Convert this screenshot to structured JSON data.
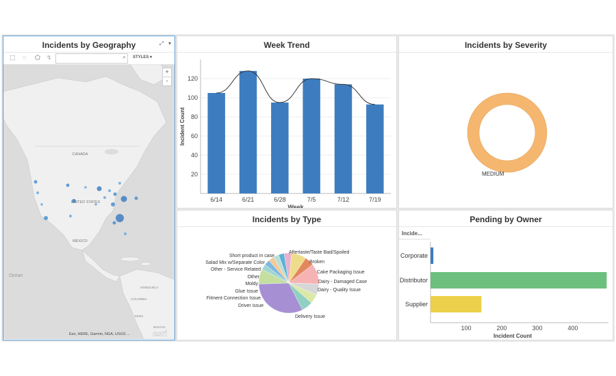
{
  "map": {
    "title": "Incidents by Geography",
    "styles_label": "STYLES",
    "search_placeholder": "",
    "labels": {
      "canada": "CANADA",
      "us": "UNITED STATES",
      "mexico": "MÉXICO",
      "ocean": "Ocean",
      "venezuela": "VENEZUELA",
      "colombia": "COLOMBIA",
      "peru": "PERU",
      "bolivia": "BOLIVIA"
    },
    "attribution": "Esri, HERE, Garmin, NGA, USGS ...",
    "logo": "esri",
    "zoom_in": "+",
    "zoom_out": "-"
  },
  "week_trend": {
    "title": "Week Trend",
    "chart_data": {
      "type": "bar",
      "categories": [
        "6/14",
        "6/21",
        "6/28",
        "7/5",
        "7/12",
        "7/19"
      ],
      "values": [
        105,
        128,
        95,
        120,
        114,
        93
      ],
      "xlabel": "Week",
      "ylabel": "Incident Count",
      "yticks": [
        20,
        40,
        60,
        80,
        100,
        120
      ],
      "ylim": [
        0,
        140
      ],
      "trend_line": true,
      "bar_color": "#3d7dbf"
    }
  },
  "severity": {
    "title": "Incidents by Severity",
    "chart_data": {
      "type": "pie",
      "donut": true,
      "slices": [
        {
          "label": "MEDIUM",
          "value": 100,
          "color": "#f5b66f"
        }
      ]
    }
  },
  "by_type": {
    "title": "Incidents by Type",
    "chart_data": {
      "type": "pie",
      "slices": [
        {
          "label": "Delivery Issue",
          "value": 32,
          "color": "#a68fd3"
        },
        {
          "label": "Driver issue",
          "value": 8,
          "color": "#c4dfa0"
        },
        {
          "label": "Fitment Connection Issue",
          "value": 3,
          "color": "#9fd6d1"
        },
        {
          "label": "Glue Issue",
          "value": 3,
          "color": "#7fb8e0"
        },
        {
          "label": "Moldy",
          "value": 3,
          "color": "#f4c998"
        },
        {
          "label": "Other",
          "value": 3,
          "color": "#b7e0d7"
        },
        {
          "label": "Other - Service Related",
          "value": 3,
          "color": "#5fb0d6"
        },
        {
          "label": "Salad Mix w/Separate Color",
          "value": 4,
          "color": "#e8b2cc"
        },
        {
          "label": "Short product in case",
          "value": 8,
          "color": "#efdc8a"
        },
        {
          "label": "Aftertaste/Taste Bad/Spoiled",
          "value": 5,
          "color": "#e2875e"
        },
        {
          "label": "Broken",
          "value": 11,
          "color": "#f6b3b3"
        },
        {
          "label": "Cake Packaging Issue",
          "value": 6,
          "color": "#d7d7d7"
        },
        {
          "label": "Dairy - Damaged Case",
          "value": 5,
          "color": "#dbe9a6"
        },
        {
          "label": "Dairy - Quality Issue",
          "value": 6,
          "color": "#8fd0c2"
        }
      ]
    }
  },
  "pending": {
    "title": "Pending by Owner",
    "column_header": "Incide...",
    "chart_data": {
      "type": "bar",
      "orientation": "horizontal",
      "categories": [
        "Corporate",
        "Distributor",
        "Supplier"
      ],
      "values": [
        8,
        495,
        143
      ],
      "colors": [
        "#3d7dbf",
        "#6cbf7d",
        "#eccf4a"
      ],
      "xlabel": "Incident Count",
      "xticks": [
        100,
        200,
        300,
        400
      ],
      "xlim": [
        0,
        500
      ]
    }
  }
}
